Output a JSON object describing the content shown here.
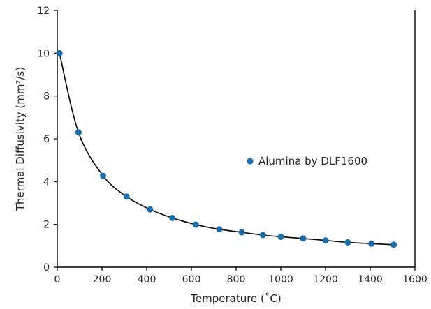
{
  "chart_data": {
    "type": "scatter",
    "xlabel": "Temperature (˚C)",
    "ylabel": "Thermal Diffusivity (mm²/s)",
    "xlim": [
      0,
      1600
    ],
    "ylim": [
      0,
      12
    ],
    "xticks": [
      0,
      200,
      400,
      600,
      800,
      1000,
      1200,
      1400,
      1600
    ],
    "yticks": [
      0,
      2,
      4,
      6,
      8,
      10,
      12
    ],
    "grid": false,
    "legend_position": "center-right",
    "series": [
      {
        "name": "Alumina by DLF1600",
        "color": "#1a6fab",
        "marker": "circle",
        "fit_line": true,
        "fit_color": "#000000",
        "x": [
          10,
          95,
          205,
          310,
          415,
          515,
          620,
          725,
          825,
          920,
          1000,
          1100,
          1200,
          1300,
          1405,
          1505
        ],
        "y": [
          10.0,
          6.3,
          4.27,
          3.3,
          2.7,
          2.3,
          1.99,
          1.77,
          1.63,
          1.5,
          1.42,
          1.34,
          1.25,
          1.16,
          1.1,
          1.05
        ]
      }
    ]
  }
}
